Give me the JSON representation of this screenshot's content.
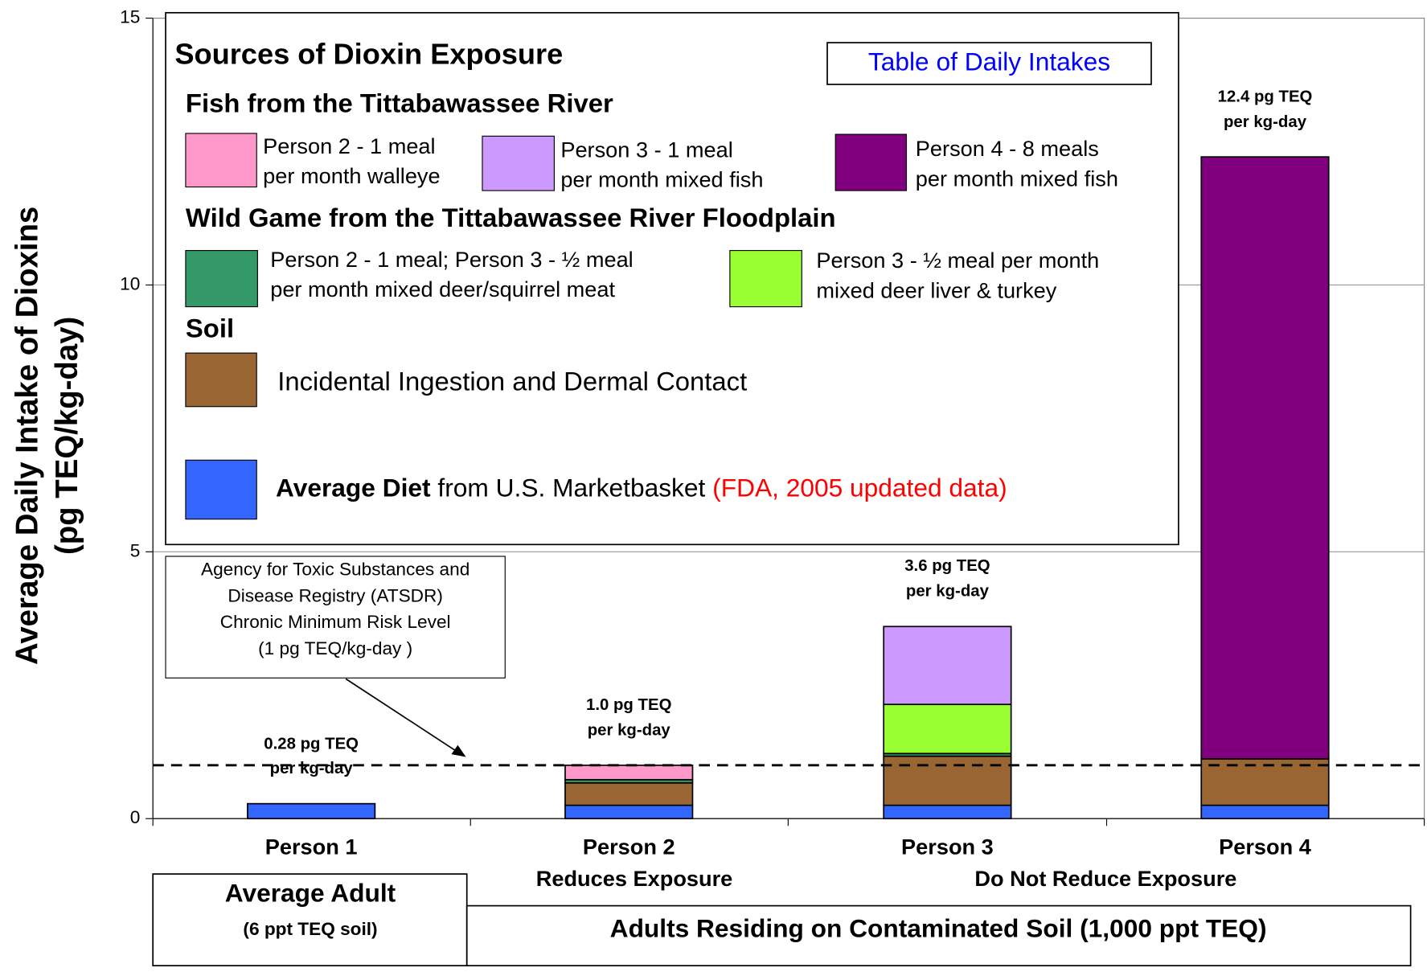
{
  "chart_data": {
    "type": "stacked_bar",
    "ylabel": "Average Daily Intake of Dioxins\n(pg TEQ/kg-day)",
    "categories": [
      "Person 1",
      "Person 2",
      "Person 3",
      "Person 4"
    ],
    "category_notes": [
      "Reduces Exposure",
      "Do Not Reduce Exposure"
    ],
    "groups": [
      {
        "title": "Average Adult",
        "subtitle": "(6 ppt TEQ soil)"
      },
      {
        "title": "Adults Residing on Contaminated Soil (1,000 ppt TEQ)"
      }
    ],
    "ylim": [
      0,
      15
    ],
    "yticks": [
      0,
      5,
      10,
      15
    ],
    "grid": true,
    "reference_line": 1,
    "annotation": "Agency for Toxic Substances and\nDisease Registry  (ATSDR)\nChronic Minimum Risk Level\n(1 pg TEQ/kg-day )",
    "total_labels": [
      "0.28 pg TEQ\nper kg-day",
      "1.0 pg TEQ\nper kg-day",
      "3.6 pg TEQ\nper kg-day",
      "12.4 pg TEQ\nper kg-day"
    ],
    "legend": {
      "title": "Sources of Dioxin Exposure",
      "button": "Table of Daily Intakes",
      "sections": [
        "Fish from the Tittabawassee River",
        "Wild Game from the Tittabawassee River Floodplain",
        "Soil"
      ]
    },
    "series": [
      {
        "name": "Average Diet",
        "name_detail": "from U.S. Marketbasket",
        "source_note": "(FDA, 2005 updated data)",
        "color": "#3366ff",
        "values": [
          0.28,
          0.25,
          0.25,
          0.25
        ]
      },
      {
        "name": "Incidental Ingestion and Dermal Contact",
        "color": "#996633",
        "values": [
          0,
          0.42,
          0.92,
          0.87
        ]
      },
      {
        "name": "Person 2 - 1 meal;   Person 3 - ½ meal\nper month mixed deer/squirrel meat",
        "color": "#339966",
        "values": [
          0,
          0.06,
          0.05,
          0
        ]
      },
      {
        "name": "Person 3   - ½ meal per month\nmixed deer liver & turkey",
        "color": "#99ff33",
        "values": [
          0,
          0,
          0.92,
          0
        ]
      },
      {
        "name": "Person 2 - 1  meal\nper month walleye",
        "color": "#ff99cc",
        "values": [
          0,
          0.27,
          0,
          0
        ]
      },
      {
        "name": "Person 3 - 1  meal\nper month mixed fish",
        "color": "#cc99ff",
        "values": [
          0,
          0,
          1.46,
          0
        ]
      },
      {
        "name": "Person 4 - 8  meals\nper month mixed fish",
        "color": "#800080",
        "values": [
          0,
          0,
          0,
          11.28
        ]
      }
    ]
  }
}
